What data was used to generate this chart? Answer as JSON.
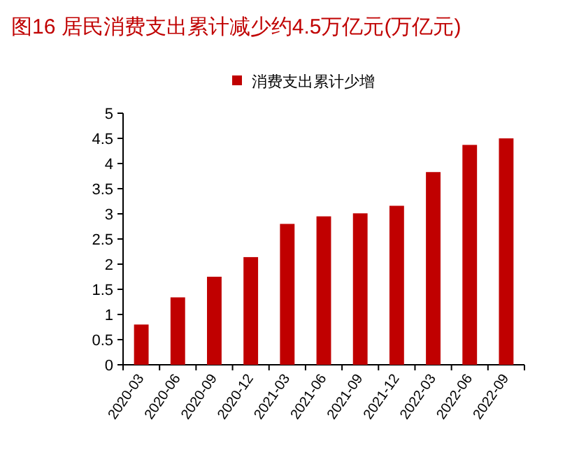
{
  "chart_data": {
    "type": "bar",
    "title": "图16 居民消费支出累计减少约4.5万亿元(万亿元)",
    "categories": [
      "2020-03",
      "2020-06",
      "2020-09",
      "2020-12",
      "2021-03",
      "2021-06",
      "2021-09",
      "2021-12",
      "2022-03",
      "2022-06",
      "2022-09"
    ],
    "series": [
      {
        "name": "消费支出累计少增",
        "color": "#c00000",
        "values": [
          0.8,
          1.34,
          1.75,
          2.14,
          2.8,
          2.95,
          3.01,
          3.16,
          3.83,
          4.37,
          4.5
        ]
      }
    ],
    "ylim": [
      0,
      5
    ],
    "yticks": [
      0,
      0.5,
      1,
      1.5,
      2,
      2.5,
      3,
      3.5,
      4,
      4.5,
      5
    ],
    "legend": "top",
    "grid": false
  }
}
